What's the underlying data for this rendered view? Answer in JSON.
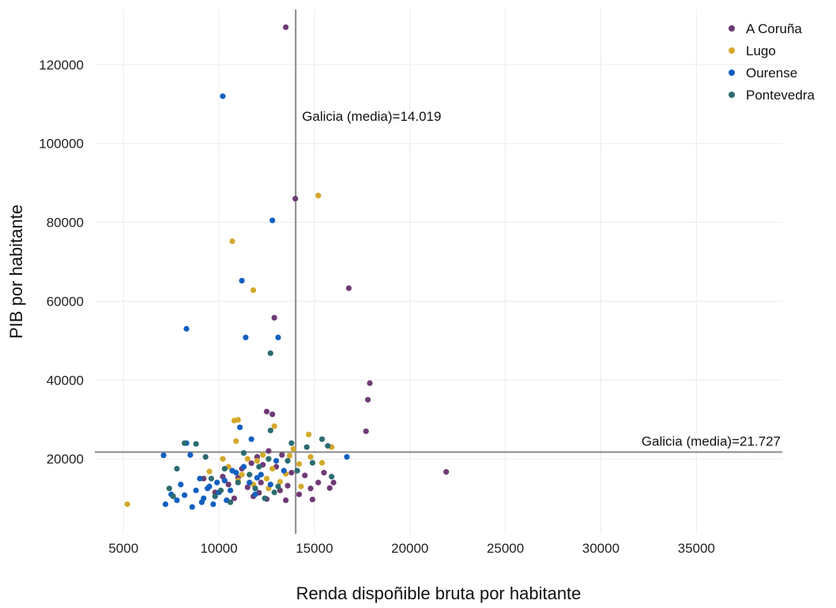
{
  "chart_data": {
    "type": "scatter",
    "xlabel": "Renda dispoñible bruta por habitante",
    "ylabel": "PIB por habitante",
    "xlim": [
      3500,
      39500
    ],
    "ylim": [
      1000,
      134000
    ],
    "x_ticks": [
      5000,
      10000,
      15000,
      20000,
      25000,
      30000,
      35000
    ],
    "y_ticks": [
      20000,
      40000,
      60000,
      80000,
      100000,
      120000
    ],
    "grid": true,
    "legend_position": "top-right",
    "reference_lines": {
      "vertical": {
        "x": 14019,
        "label": "Galicia (media)=14.019"
      },
      "horizontal": {
        "y": 21727,
        "label": "Galicia (media)=21.727"
      }
    },
    "series": [
      {
        "name": "A Coruña",
        "color": "#6e3a75",
        "points": [
          [
            13500,
            129500
          ],
          [
            14000,
            86000
          ],
          [
            12900,
            55800
          ],
          [
            16800,
            63300
          ],
          [
            17900,
            39200
          ],
          [
            17800,
            35000
          ],
          [
            17700,
            27000
          ],
          [
            12500,
            32000
          ],
          [
            12800,
            31300
          ],
          [
            21900,
            16700
          ],
          [
            12000,
            20500
          ],
          [
            12300,
            18500
          ],
          [
            11000,
            15200
          ],
          [
            11500,
            12800
          ],
          [
            12200,
            14000
          ],
          [
            13200,
            12000
          ],
          [
            13500,
            9500
          ],
          [
            14200,
            11000
          ],
          [
            14800,
            12500
          ],
          [
            15200,
            14000
          ],
          [
            13800,
            16500
          ],
          [
            12600,
            22000
          ],
          [
            11800,
            10500
          ],
          [
            10500,
            13500
          ],
          [
            9800,
            11500
          ],
          [
            10200,
            15500
          ],
          [
            13000,
            18000
          ],
          [
            14500,
            15800
          ],
          [
            15500,
            16500
          ],
          [
            12500,
            9800
          ],
          [
            11200,
            17500
          ],
          [
            13600,
            13200
          ],
          [
            14900,
            9700
          ],
          [
            15800,
            12600
          ],
          [
            12100,
            11400
          ],
          [
            9200,
            15000
          ],
          [
            13300,
            21000
          ],
          [
            11700,
            18900
          ],
          [
            16000,
            14000
          ],
          [
            10800,
            10000
          ]
        ]
      },
      {
        "name": "Lugo",
        "color": "#d4a82b",
        "points": [
          [
            15200,
            86800
          ],
          [
            10700,
            75200
          ],
          [
            11800,
            62800
          ],
          [
            5200,
            8500
          ],
          [
            14700,
            26200
          ],
          [
            10800,
            29700
          ],
          [
            11000,
            29900
          ],
          [
            12900,
            28300
          ],
          [
            15900,
            23000
          ],
          [
            13900,
            22500
          ],
          [
            11500,
            20000
          ],
          [
            12000,
            19500
          ],
          [
            12800,
            17500
          ],
          [
            13500,
            16200
          ],
          [
            14200,
            18700
          ],
          [
            11200,
            16000
          ],
          [
            10500,
            18000
          ],
          [
            12500,
            15000
          ],
          [
            13200,
            14200
          ],
          [
            11800,
            13500
          ],
          [
            14800,
            20500
          ],
          [
            15400,
            19000
          ],
          [
            10200,
            20000
          ],
          [
            12300,
            21000
          ],
          [
            13700,
            20800
          ],
          [
            11000,
            14500
          ],
          [
            9500,
            16800
          ],
          [
            12600,
            12500
          ],
          [
            14300,
            13000
          ],
          [
            10900,
            24500
          ]
        ]
      },
      {
        "name": "Ourense",
        "color": "#1060c0",
        "points": [
          [
            10200,
            112000
          ],
          [
            12800,
            80500
          ],
          [
            11200,
            65200
          ],
          [
            8300,
            53000
          ],
          [
            11400,
            50800
          ],
          [
            13100,
            50800
          ],
          [
            7100,
            20900
          ],
          [
            7200,
            8500
          ],
          [
            7500,
            11000
          ],
          [
            7800,
            9500
          ],
          [
            8000,
            13500
          ],
          [
            8300,
            24000
          ],
          [
            8500,
            21000
          ],
          [
            8800,
            12000
          ],
          [
            9000,
            15000
          ],
          [
            9200,
            10000
          ],
          [
            9500,
            13000
          ],
          [
            9700,
            8500
          ],
          [
            10000,
            11500
          ],
          [
            10300,
            14500
          ],
          [
            10600,
            12000
          ],
          [
            10900,
            16500
          ],
          [
            11100,
            28000
          ],
          [
            11300,
            18000
          ],
          [
            11600,
            14000
          ],
          [
            11900,
            11000
          ],
          [
            12200,
            16000
          ],
          [
            12700,
            13500
          ],
          [
            13000,
            19500
          ],
          [
            13400,
            17000
          ],
          [
            16700,
            20500
          ],
          [
            8600,
            7800
          ],
          [
            9100,
            9000
          ],
          [
            9900,
            14000
          ],
          [
            10400,
            9500
          ],
          [
            11700,
            25000
          ],
          [
            8200,
            10800
          ],
          [
            9400,
            12500
          ],
          [
            10700,
            17000
          ],
          [
            12000,
            15200
          ]
        ]
      },
      {
        "name": "Pontevedra",
        "color": "#2b6c70",
        "points": [
          [
            12700,
            46800
          ],
          [
            12700,
            27200
          ],
          [
            7800,
            17500
          ],
          [
            7400,
            12500
          ],
          [
            7600,
            10500
          ],
          [
            8200,
            24000
          ],
          [
            8800,
            23800
          ],
          [
            9300,
            20500
          ],
          [
            9600,
            15000
          ],
          [
            10100,
            12000
          ],
          [
            10600,
            9000
          ],
          [
            11000,
            14000
          ],
          [
            11600,
            16000
          ],
          [
            12100,
            18000
          ],
          [
            12600,
            20000
          ],
          [
            13100,
            13000
          ],
          [
            13600,
            19500
          ],
          [
            14100,
            17000
          ],
          [
            14600,
            23000
          ],
          [
            15400,
            25000
          ],
          [
            15700,
            23300
          ],
          [
            15900,
            15500
          ],
          [
            12400,
            10000
          ],
          [
            11300,
            21500
          ],
          [
            10300,
            17500
          ],
          [
            9800,
            10500
          ],
          [
            13800,
            24000
          ],
          [
            14900,
            19000
          ],
          [
            12900,
            11500
          ],
          [
            11900,
            12500
          ]
        ]
      }
    ]
  }
}
